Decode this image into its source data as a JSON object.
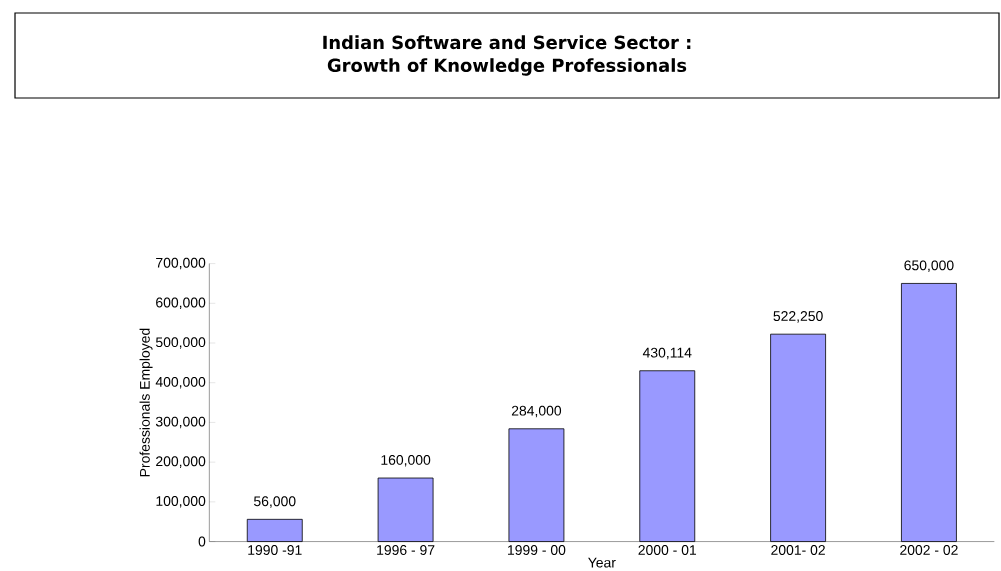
{
  "chart_data": {
    "type": "bar",
    "title": "Indian Software and Service Sector :\nGrowth of Knowledge Professionals",
    "xlabel": "Year",
    "ylabel": "Professionals Employed",
    "categories": [
      "1990 -91",
      "1996 - 97",
      "1999 - 00",
      "2000 - 01",
      "2001- 02",
      "2002 - 02"
    ],
    "values": [
      56000,
      160000,
      284000,
      430114,
      522250,
      650000
    ],
    "value_labels": [
      "56,000",
      "160,000",
      "284,000",
      "430,114",
      "522,250",
      "650,000"
    ],
    "color": "#9999ff",
    "ylim": [
      0,
      700000
    ],
    "yticks": [
      {
        "value": 0,
        "label": "0"
      },
      {
        "value": 100000,
        "label": "100,000"
      },
      {
        "value": 200000,
        "label": "200,000"
      },
      {
        "value": 300000,
        "label": "300,000"
      },
      {
        "value": 400000,
        "label": "400,000"
      },
      {
        "value": 500000,
        "label": "500,000"
      },
      {
        "value": 600000,
        "label": "600,000"
      },
      {
        "value": 700000,
        "label": "700,000"
      }
    ],
    "grid": false
  }
}
